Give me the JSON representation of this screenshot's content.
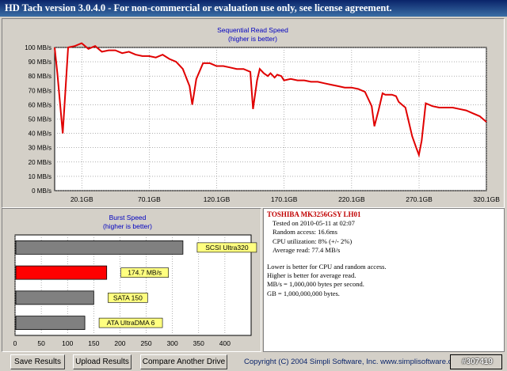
{
  "window": {
    "title": "HD Tach version 3.0.4.0  - For non-commercial or evaluation use only, see license agreement."
  },
  "seq_chart": {
    "title": "Sequential Read Speed",
    "subtitle": "(higher is better)"
  },
  "burst_chart": {
    "title": "Burst Speed",
    "subtitle": "(higher is better)"
  },
  "chart_data": [
    {
      "type": "line",
      "title": "Sequential Read Speed",
      "subtitle": "(higher is better)",
      "xlabel": "",
      "ylabel": "",
      "xlim": [
        0,
        320
      ],
      "ylim": [
        0,
        100
      ],
      "x_unit": "GB",
      "y_unit": "MB/s",
      "grid": true,
      "color": "#e00000",
      "x_ticks": [
        "20.1GB",
        "70.1GB",
        "120.1GB",
        "170.1GB",
        "220.1GB",
        "270.1GB",
        "320.1GB"
      ],
      "x_tick_values": [
        20.1,
        70.1,
        120.1,
        170.1,
        220.1,
        270.1,
        320.1
      ],
      "y_ticks": [
        "0 MB/s",
        "10 MB/s",
        "20 MB/s",
        "30 MB/s",
        "40 MB/s",
        "50 MB/s",
        "60 MB/s",
        "70 MB/s",
        "80 MB/s",
        "90 MB/s",
        "100 MB/s"
      ],
      "y_tick_values": [
        0,
        10,
        20,
        30,
        40,
        50,
        60,
        70,
        80,
        90,
        100
      ],
      "x": [
        0,
        2,
        6,
        10,
        15,
        20,
        25,
        30,
        35,
        40,
        45,
        50,
        55,
        60,
        65,
        70,
        75,
        80,
        85,
        90,
        95,
        100,
        102,
        105,
        110,
        115,
        120,
        125,
        130,
        135,
        140,
        145,
        147,
        150,
        152,
        155,
        158,
        160,
        163,
        165,
        168,
        170,
        175,
        180,
        185,
        190,
        195,
        200,
        205,
        210,
        215,
        220,
        225,
        230,
        235,
        237,
        240,
        243,
        245,
        250,
        253,
        255,
        260,
        262,
        265,
        268,
        270,
        272,
        275,
        280,
        285,
        290,
        295,
        300,
        305,
        310,
        315,
        320
      ],
      "y": [
        100,
        82,
        40,
        100,
        101,
        103,
        99,
        101,
        97,
        98,
        98,
        96,
        97,
        95,
        94,
        94,
        93,
        95,
        92,
        90,
        85,
        73,
        60,
        78,
        89,
        89,
        87,
        87,
        86,
        85,
        85,
        83,
        57,
        77,
        85,
        82,
        80,
        82,
        79,
        81,
        80,
        77,
        78,
        77,
        77,
        76,
        76,
        75,
        74,
        73,
        72,
        72,
        71,
        69,
        59,
        45,
        56,
        68,
        67,
        67,
        66,
        62,
        58,
        50,
        38,
        30,
        25,
        35,
        61,
        59,
        58,
        58,
        58,
        57,
        56,
        54,
        52,
        48
      ]
    },
    {
      "type": "bar",
      "orientation": "horizontal",
      "title": "Burst Speed",
      "subtitle": "(higher is better)",
      "xlim": [
        0,
        450
      ],
      "x_ticks": [
        "0",
        "50",
        "100",
        "150",
        "200",
        "250",
        "300",
        "350",
        "400"
      ],
      "x_tick_values": [
        0,
        50,
        100,
        150,
        200,
        250,
        300,
        350,
        400
      ],
      "grid": true,
      "categories": [
        "SCSI Ultra320",
        "174.7 MB/s",
        "SATA 150",
        "ATA UltraDMA 6"
      ],
      "values": [
        320,
        174.7,
        150,
        133
      ],
      "colors": [
        "#808080",
        "#ff0000",
        "#808080",
        "#808080"
      ],
      "label_color": "#ffff80"
    }
  ],
  "info": {
    "drive_name": "TOSHIBA MK3256GSY LH01",
    "tested_on": "Tested on 2010-05-11 at 02:07",
    "random_access": "Random access: 16.6ms",
    "cpu_utilization": "CPU utilization: 8% (+/- 2%)",
    "average_read": "Average read: 77.4 MB/s",
    "note1": "Lower is better for CPU and random access.",
    "note2": "Higher is better for average read.",
    "note3": "MB/s = 1,000,000 bytes per second.",
    "note4": "GB = 1,000,000,000 bytes."
  },
  "buttons": {
    "save": "Save Results",
    "upload": "Upload Results",
    "compare": "Compare Another Drive"
  },
  "footer": {
    "copyright": "Copyright (C) 2004 Simpli Software, Inc. www.simplisoftware.com",
    "watermark": "#307419"
  }
}
